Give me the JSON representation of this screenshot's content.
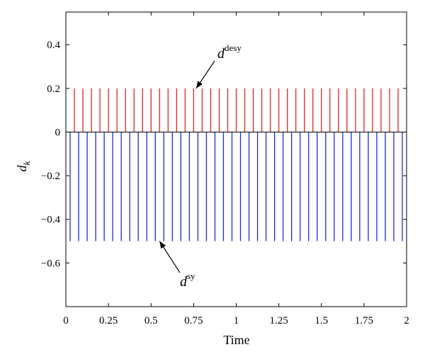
{
  "chart_data": {
    "type": "stem",
    "xlabel": "Time",
    "ylabel_main": "d",
    "ylabel_sub": "k",
    "xlim": [
      0,
      2
    ],
    "ylim": [
      -0.8,
      0.55
    ],
    "x_ticks": [
      0,
      0.25,
      0.5,
      0.75,
      1,
      1.25,
      1.5,
      1.75,
      2
    ],
    "x_tick_labels": [
      "0",
      "0.25",
      "0.5",
      "0.75",
      "1",
      "1.25",
      "1.5",
      "1.75",
      "2"
    ],
    "y_ticks": [
      0.4,
      0.2,
      0,
      -0.2,
      -0.4,
      -0.6
    ],
    "y_tick_labels": [
      "0.4",
      "0.2",
      "0",
      "−0.2",
      "−0.4",
      "−0.6"
    ],
    "grid": false,
    "series": [
      {
        "symbol_main": "d",
        "symbol_sup": "desy",
        "color": "#e8231f",
        "value": 0.2,
        "x_start": 0.05,
        "x_end": 1.95,
        "count": 39,
        "annotation_point": [
          0.765,
          0.2
        ]
      },
      {
        "symbol_main": "d",
        "symbol_sup": "sy",
        "color": "#1f2bd6",
        "value": -0.5,
        "x_start": 0.025,
        "x_end": 1.975,
        "count": 40,
        "annotation_point": [
          0.55,
          -0.5
        ]
      }
    ]
  }
}
